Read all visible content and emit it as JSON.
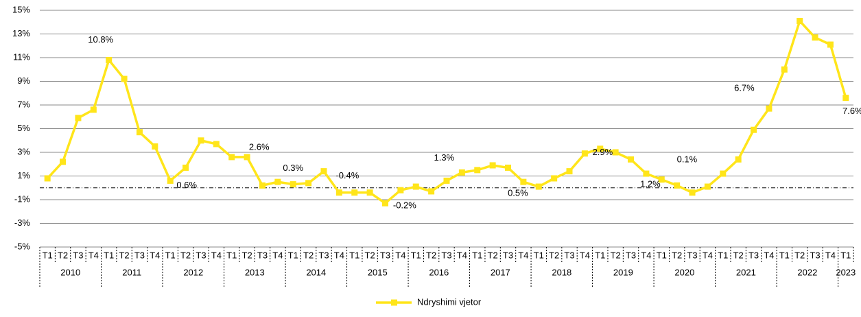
{
  "chart_data": {
    "type": "line",
    "categories": [
      "T1",
      "T2",
      "T3",
      "T4",
      "T1",
      "T2",
      "T3",
      "T4",
      "T1",
      "T2",
      "T3",
      "T4",
      "T1",
      "T2",
      "T3",
      "T4",
      "T1",
      "T2",
      "T3",
      "T4",
      "T1",
      "T2",
      "T3",
      "T4",
      "T1",
      "T2",
      "T3",
      "T4",
      "T1",
      "T2",
      "T3",
      "T4",
      "T1",
      "T2",
      "T3",
      "T4",
      "T1",
      "T2",
      "T3",
      "T4",
      "T1",
      "T2",
      "T3",
      "T4",
      "T1",
      "T2",
      "T3",
      "T4",
      "T1",
      "T2",
      "T3",
      "T4",
      "T1"
    ],
    "year_labels": [
      "2010",
      "2011",
      "2012",
      "2013",
      "2014",
      "2015",
      "2016",
      "2017",
      "2018",
      "2019",
      "2020",
      "2021",
      "2022",
      "2023"
    ],
    "series": [
      {
        "name": "Ndryshimi vjetor",
        "color": "#ffe51a",
        "values": [
          0.8,
          2.2,
          5.9,
          6.6,
          10.8,
          9.2,
          4.7,
          3.5,
          0.6,
          1.7,
          4.0,
          3.7,
          2.6,
          2.6,
          0.2,
          0.5,
          0.3,
          0.4,
          1.4,
          -0.4,
          -0.4,
          -0.4,
          -1.3,
          -0.2,
          0.1,
          -0.3,
          0.6,
          1.3,
          1.5,
          1.9,
          1.7,
          0.5,
          0.1,
          0.8,
          1.4,
          2.9,
          3.3,
          3.0,
          2.4,
          1.2,
          0.7,
          0.2,
          -0.4,
          0.1,
          1.2,
          2.4,
          4.9,
          6.7,
          10.0,
          14.1,
          12.7,
          12.1,
          7.6
        ],
        "value_labels": [
          null,
          null,
          null,
          null,
          "10.8%",
          null,
          null,
          null,
          "0.6%",
          null,
          null,
          null,
          "2.6%",
          null,
          null,
          null,
          "0.3%",
          null,
          null,
          "-0.4%",
          null,
          null,
          null,
          "-0.2%",
          null,
          null,
          null,
          "1.3%",
          null,
          null,
          null,
          "0.5%",
          null,
          null,
          null,
          "2.9%",
          null,
          null,
          null,
          "1.2%",
          null,
          null,
          null,
          "0.1%",
          null,
          null,
          null,
          "6.7%",
          null,
          null,
          null,
          null,
          "7.6%"
        ]
      }
    ],
    "ylim": [
      -5,
      15
    ],
    "yticks": [
      {
        "value": -5,
        "label": "-5%"
      },
      {
        "value": -3,
        "label": "-3%"
      },
      {
        "value": -1,
        "label": "-1%"
      },
      {
        "value": 1,
        "label": "1%"
      },
      {
        "value": 3,
        "label": "3%"
      },
      {
        "value": 5,
        "label": "5%"
      },
      {
        "value": 7,
        "label": "7%"
      },
      {
        "value": 9,
        "label": "9%"
      },
      {
        "value": 11,
        "label": "11%"
      },
      {
        "value": 13,
        "label": "13%"
      },
      {
        "value": 15,
        "label": "15%"
      }
    ],
    "grid": true,
    "legend": "bottom"
  }
}
